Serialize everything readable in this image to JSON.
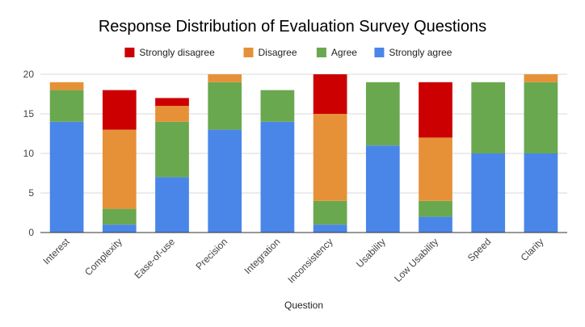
{
  "chart_data": {
    "type": "bar",
    "stacked": true,
    "title": "Response Distribution of Evaluation Survey Questions",
    "xlabel": "Question",
    "ylabel": "",
    "ylim": [
      0,
      20
    ],
    "yticks": [
      0,
      5,
      10,
      15,
      20
    ],
    "grid": true,
    "legend_position": "top",
    "categories": [
      "Interest",
      "Complexity",
      "Ease-of-use",
      "Precision",
      "Integration",
      "Inconsistency",
      "Usability",
      "Low Usability",
      "Speed",
      "Clarity"
    ],
    "series": [
      {
        "name": "Strongly agree",
        "color": "#4a86e8",
        "values": [
          14,
          1,
          7,
          13,
          14,
          1,
          11,
          2,
          10,
          10
        ]
      },
      {
        "name": "Agree",
        "color": "#6aa84f",
        "values": [
          4,
          2,
          7,
          6,
          4,
          3,
          8,
          2,
          9,
          9
        ]
      },
      {
        "name": "Disagree",
        "color": "#e69138",
        "values": [
          1,
          10,
          2,
          1,
          0,
          11,
          0,
          8,
          0,
          1
        ]
      },
      {
        "name": "Strongly disagree",
        "color": "#cc0000",
        "values": [
          0,
          5,
          1,
          0,
          0,
          5,
          0,
          7,
          0,
          0
        ]
      }
    ],
    "legend_order": [
      "Strongly disagree",
      "Disagree",
      "Agree",
      "Strongly agree"
    ]
  }
}
